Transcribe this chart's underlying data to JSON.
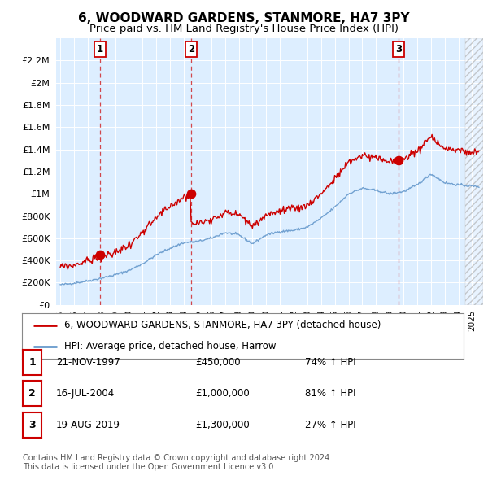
{
  "title": "6, WOODWARD GARDENS, STANMORE, HA7 3PY",
  "subtitle": "Price paid vs. HM Land Registry's House Price Index (HPI)",
  "ylim": [
    0,
    2400000
  ],
  "yticks": [
    0,
    200000,
    400000,
    600000,
    800000,
    1000000,
    1200000,
    1400000,
    1600000,
    1800000,
    2000000,
    2200000
  ],
  "ytick_labels": [
    "£0",
    "£200K",
    "£400K",
    "£600K",
    "£800K",
    "£1M",
    "£1.2M",
    "£1.4M",
    "£1.6M",
    "£1.8M",
    "£2M",
    "£2.2M"
  ],
  "xlim_start": 1994.7,
  "xlim_end": 2025.8,
  "plot_bg_color": "#ddeeff",
  "red_line_color": "#cc0000",
  "blue_line_color": "#6699cc",
  "sale_dot_color": "#cc0000",
  "vline_color": "#cc0000",
  "legend_label_red": "6, WOODWARD GARDENS, STANMORE, HA7 3PY (detached house)",
  "legend_label_blue": "HPI: Average price, detached house, Harrow",
  "sales": [
    {
      "num": 1,
      "year": 1997.89,
      "price": 450000,
      "date_str": "21-NOV-1997",
      "price_str": "£450,000",
      "hpi_str": "74% ↑ HPI"
    },
    {
      "num": 2,
      "year": 2004.54,
      "price": 1000000,
      "date_str": "16-JUL-2004",
      "price_str": "£1,000,000",
      "hpi_str": "81% ↑ HPI"
    },
    {
      "num": 3,
      "year": 2019.63,
      "price": 1300000,
      "date_str": "19-AUG-2019",
      "price_str": "£1,300,000",
      "hpi_str": "27% ↑ HPI"
    }
  ],
  "footer_text": "Contains HM Land Registry data © Crown copyright and database right 2024.\nThis data is licensed under the Open Government Licence v3.0.",
  "title_fontsize": 11,
  "subtitle_fontsize": 9.5
}
